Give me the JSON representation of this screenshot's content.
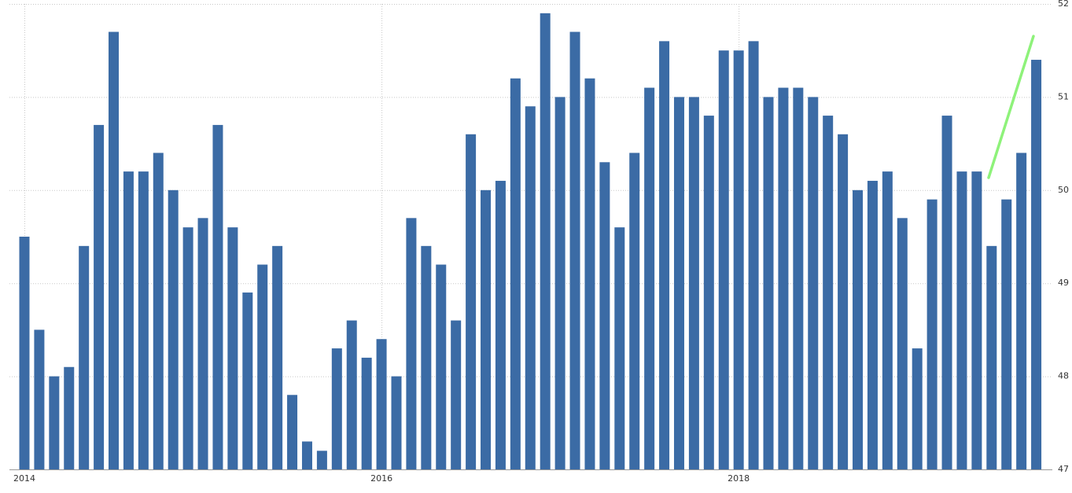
{
  "chart_data": {
    "type": "bar",
    "color": "#3b6ba5",
    "grid": true,
    "categories": [
      "2014",
      null,
      null,
      null,
      null,
      null,
      null,
      null,
      null,
      null,
      null,
      null,
      null,
      null,
      null,
      null,
      null,
      null,
      null,
      null,
      null,
      null,
      null,
      null,
      "2016",
      null,
      null,
      null,
      null,
      null,
      null,
      null,
      null,
      null,
      null,
      null,
      null,
      null,
      null,
      null,
      null,
      null,
      null,
      null,
      null,
      null,
      null,
      null,
      "2018",
      null,
      null,
      null,
      null,
      null,
      null,
      null,
      null,
      null,
      null,
      null,
      null,
      null,
      null,
      null,
      null,
      null,
      null,
      null,
      null
    ],
    "values": [
      49.5,
      48.5,
      48.0,
      48.1,
      49.4,
      50.7,
      51.7,
      50.2,
      50.2,
      50.4,
      50.0,
      49.6,
      49.7,
      50.7,
      49.6,
      48.9,
      49.2,
      49.4,
      47.8,
      47.3,
      47.2,
      48.3,
      48.6,
      48.2,
      48.4,
      48.0,
      49.7,
      49.4,
      49.2,
      48.6,
      50.6,
      50.0,
      50.1,
      51.2,
      50.9,
      51.9,
      51.0,
      51.7,
      51.2,
      50.3,
      49.6,
      50.4,
      51.1,
      51.6,
      51.0,
      51.0,
      50.8,
      51.5,
      51.5,
      51.6,
      51.0,
      51.1,
      51.1,
      51.0,
      50.8,
      50.6,
      50.0,
      50.1,
      50.2,
      49.7,
      48.3,
      49.9,
      50.8,
      50.2,
      50.2,
      49.4,
      49.9,
      50.4,
      51.4
    ],
    "ylim": [
      47,
      52
    ],
    "yticks": [
      47,
      48,
      49,
      50,
      51,
      52
    ]
  }
}
